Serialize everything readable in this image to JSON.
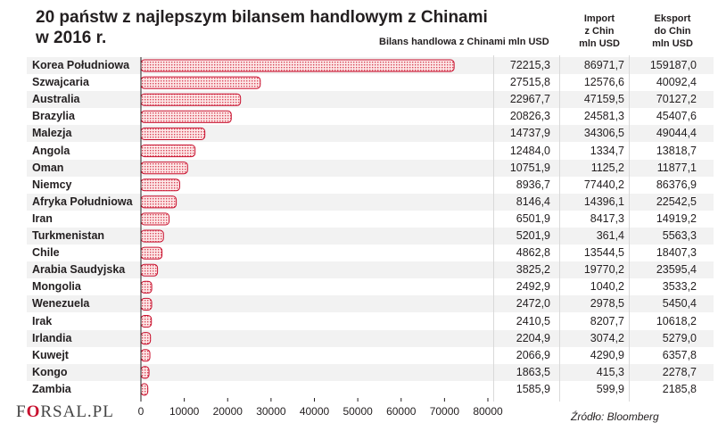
{
  "title_line1": "20 państw z najlepszym bilansem handlowym z Chinami",
  "title_line2": "w 2016 r.",
  "headers": {
    "balance": "Bilans handlowa z Chinami mln USD",
    "import": [
      "Import",
      "z Chin",
      "mln USD"
    ],
    "export": [
      "Eksport",
      "do Chin",
      "mln USD"
    ]
  },
  "chart_data": {
    "type": "bar",
    "orientation": "horizontal",
    "categories": [
      "Korea Południowa",
      "Szwajcaria",
      "Australia",
      "Brazylia",
      "Malezja",
      "Angola",
      "Oman",
      "Niemcy",
      "Afryka Południowa",
      "Iran",
      "Turkmenistan",
      "Chile",
      "Arabia Saudyjska",
      "Mongolia",
      "Wenezuela",
      "Irak",
      "Irlandia",
      "Kuwejt",
      "Kongo",
      "Zambia"
    ],
    "values": [
      72215.3,
      27515.8,
      22967.7,
      20826.3,
      14737.9,
      12484.0,
      10751.9,
      8936.7,
      8146.4,
      6501.9,
      5201.9,
      4862.8,
      3825.2,
      2492.9,
      2472.0,
      2410.5,
      2204.9,
      2066.9,
      1863.5,
      1585.9
    ],
    "balance_labels": [
      "72215,3",
      "27515,8",
      "22967,7",
      "20826,3",
      "14737,9",
      "12484,0",
      "10751,9",
      "8936,7",
      "8146,4",
      "6501,9",
      "5201,9",
      "4862,8",
      "3825,2",
      "2492,9",
      "2472,0",
      "2410,5",
      "2204,9",
      "2066,9",
      "1863,5",
      "1585,9"
    ],
    "import_labels": [
      "86971,7",
      "12576,6",
      "47159,5",
      "24581,3",
      "34306,5",
      "1334,7",
      "1125,2",
      "77440,2",
      "14396,1",
      "8417,3",
      "361,4",
      "13544,5",
      "19770,2",
      "1040,2",
      "2978,5",
      "8207,7",
      "3074,2",
      "4290,9",
      "415,3",
      "599,9"
    ],
    "export_labels": [
      "159187,0",
      "40092,4",
      "70127,2",
      "45407,6",
      "49044,4",
      "13818,7",
      "11877,1",
      "86376,9",
      "22542,5",
      "14919,2",
      "5563,3",
      "18407,3",
      "23595,4",
      "3533,2",
      "5450,4",
      "10618,2",
      "5279,0",
      "6357,8",
      "2278,7",
      "2185,8"
    ],
    "xlim": [
      0,
      80000
    ],
    "xticks": [
      0,
      10000,
      20000,
      30000,
      40000,
      50000,
      60000,
      70000,
      80000
    ],
    "xtick_labels": [
      "0",
      "10000",
      "20000",
      "30000",
      "40000",
      "50000",
      "60000",
      "70000",
      "80000"
    ],
    "bar_color": "#c8102e",
    "bar_fill": "#fbe3e3"
  },
  "logo": {
    "pre": "F",
    "mark": "O",
    "post": "RSAL.PL"
  },
  "source": "Źródło: Bloomberg"
}
